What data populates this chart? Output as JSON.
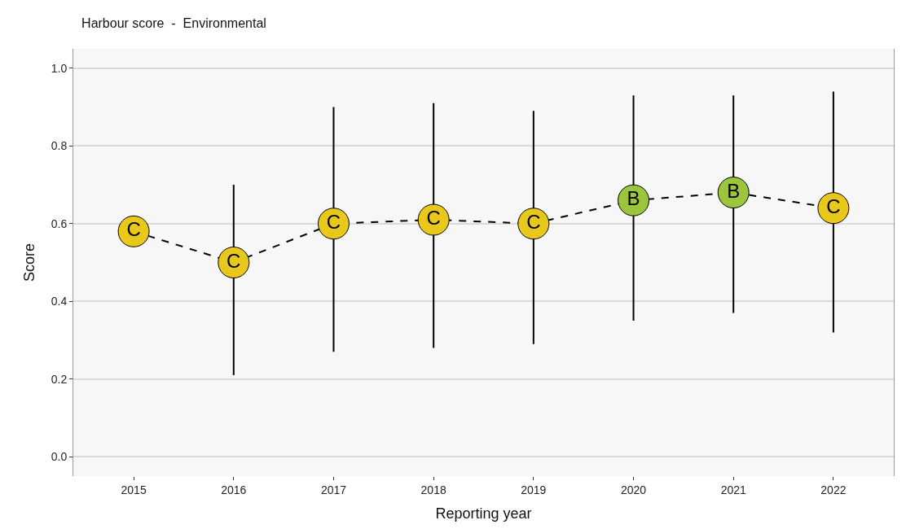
{
  "chart_data": {
    "type": "line",
    "title": "Harbour score  -  Environmental",
    "xlabel": "Reporting year",
    "ylabel": "Score",
    "categories": [
      "2015",
      "2016",
      "2017",
      "2018",
      "2019",
      "2020",
      "2021",
      "2022"
    ],
    "values": [
      0.58,
      0.5,
      0.6,
      0.61,
      0.6,
      0.66,
      0.68,
      0.64
    ],
    "value_labels": [
      "C",
      "C",
      "C",
      "C",
      "C",
      "B",
      "B",
      "C"
    ],
    "colors": [
      "#e8c81a",
      "#e8c81a",
      "#e8c81a",
      "#e8c81a",
      "#e8c81a",
      "#9bc53d",
      "#9bc53d",
      "#e8c81a"
    ],
    "errors": [
      null,
      [
        0.21,
        0.7
      ],
      [
        0.27,
        0.9
      ],
      [
        0.28,
        0.91
      ],
      [
        0.29,
        0.89
      ],
      [
        0.35,
        0.93
      ],
      [
        0.37,
        0.93
      ],
      [
        0.32,
        0.94
      ]
    ],
    "ylim": [
      -0.05,
      1.05
    ],
    "yticks": [
      {
        "value": 0,
        "label": "0.0"
      },
      {
        "value": 0.2,
        "label": "0.2"
      },
      {
        "value": 0.4,
        "label": "0.4"
      },
      {
        "value": 0.6,
        "label": "0.6"
      },
      {
        "value": 0.8,
        "label": "0.8"
      },
      {
        "value": 1,
        "label": "1.0"
      }
    ],
    "grid": "y",
    "marker": "circle",
    "line_style": "dashed"
  }
}
